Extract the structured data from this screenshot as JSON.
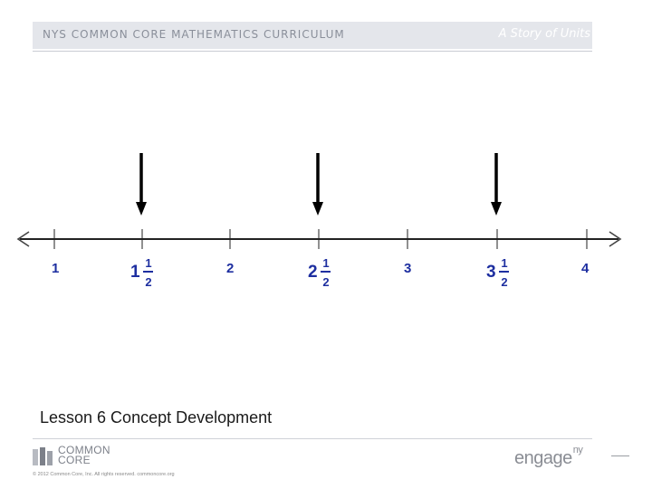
{
  "header": {
    "curriculum": "NYS COMMON CORE MATHEMATICS CURRICULUM",
    "series": "A Story of Units"
  },
  "number_line": {
    "whole_labels": [
      "1",
      "2",
      "3",
      "4"
    ],
    "mixed_labels": [
      {
        "whole": "1",
        "numerator": "1",
        "denominator": "2"
      },
      {
        "whole": "2",
        "numerator": "1",
        "denominator": "2"
      },
      {
        "whole": "3",
        "numerator": "1",
        "denominator": "2"
      }
    ],
    "arrows_point_to": [
      "1 1/2",
      "2 1/2",
      "3 1/2"
    ]
  },
  "lesson": {
    "title": "Lesson 6 Concept Development"
  },
  "footer": {
    "logo_line1": "COMMON",
    "logo_line2": "CORE",
    "copyright": "© 2012 Common Core, Inc. All rights reserved. commoncore.org",
    "brand": "engage",
    "brand_sup": "ny"
  }
}
